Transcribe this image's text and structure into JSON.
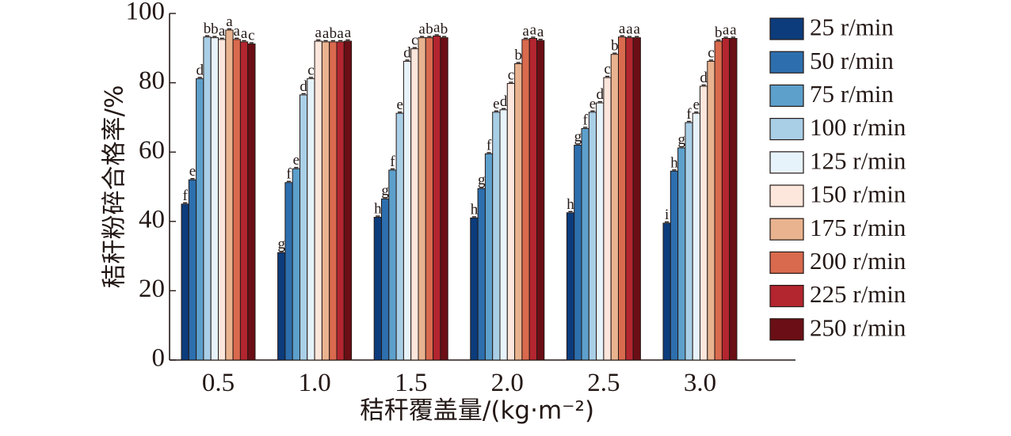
{
  "chart_data": {
    "type": "bar",
    "title": "",
    "xlabel": "秸秆覆盖量/(kg·m⁻²)",
    "ylabel": "秸秆粉碎合格率/%",
    "ylim": [
      0,
      100
    ],
    "yticks": [
      0,
      20,
      40,
      60,
      80,
      100
    ],
    "categories": [
      "0.5",
      "1.0",
      "1.5",
      "2.0",
      "2.5",
      "3.0"
    ],
    "legend_position": "right",
    "grid": false,
    "series": [
      {
        "name": "25 r/min",
        "color": "#0c3c7c",
        "values": [
          45.0,
          31.0,
          41.2,
          41.0,
          42.5,
          39.5
        ],
        "letters": [
          "f",
          "g",
          "h",
          "h",
          "h",
          "i"
        ]
      },
      {
        "name": "50 r/min",
        "color": "#2d6fae",
        "values": [
          52.0,
          51.2,
          46.5,
          49.5,
          62.0,
          54.5
        ],
        "letters": [
          "e",
          "f",
          "g",
          "g",
          "g",
          "h"
        ]
      },
      {
        "name": "75 r/min",
        "color": "#5da0cc",
        "values": [
          81.2,
          55.2,
          54.8,
          59.5,
          66.8,
          61.2
        ],
        "letters": [
          "d",
          "e",
          "f",
          "f",
          "f",
          "g"
        ]
      },
      {
        "name": "100 r/min",
        "color": "#a9cfe7",
        "values": [
          93.2,
          76.5,
          71.2,
          71.5,
          71.5,
          68.5
        ],
        "letters": [
          "b",
          "d",
          "e",
          "e",
          "e",
          "f"
        ]
      },
      {
        "name": "125 r/min",
        "color": "#e7f3fa",
        "values": [
          93.0,
          81.2,
          86.2,
          72.2,
          74.2,
          71.2
        ],
        "letters": [
          "b",
          "c",
          "d",
          "d",
          "d",
          "e"
        ]
      },
      {
        "name": "150 r/min",
        "color": "#fde6dc",
        "values": [
          92.5,
          92.0,
          89.8,
          79.8,
          81.5,
          79.0
        ],
        "letters": [
          "a",
          "a",
          "c",
          "c",
          "c",
          "d"
        ]
      },
      {
        "name": "175 r/min",
        "color": "#e9b38f",
        "values": [
          95.2,
          91.8,
          93.0,
          85.5,
          88.2,
          86.2
        ],
        "letters": [
          "a",
          "a",
          "a",
          "b",
          "b",
          "c"
        ]
      },
      {
        "name": "200 r/min",
        "color": "#d96a4e",
        "values": [
          92.5,
          91.8,
          93.0,
          92.5,
          93.2,
          92.0
        ],
        "letters": [
          "a",
          "b",
          "b",
          "a",
          "a",
          "b"
        ]
      },
      {
        "name": "225 r/min",
        "color": "#b3252f",
        "values": [
          91.8,
          91.8,
          93.5,
          92.8,
          93.0,
          92.8
        ],
        "letters": [
          "a",
          "a",
          "a",
          "a",
          "a",
          "a"
        ]
      },
      {
        "name": "250 r/min",
        "color": "#6b0e15",
        "values": [
          91.2,
          92.0,
          93.0,
          92.2,
          93.0,
          92.8
        ],
        "letters": [
          "c",
          "a",
          "b",
          "a",
          "a",
          "a"
        ]
      }
    ]
  }
}
